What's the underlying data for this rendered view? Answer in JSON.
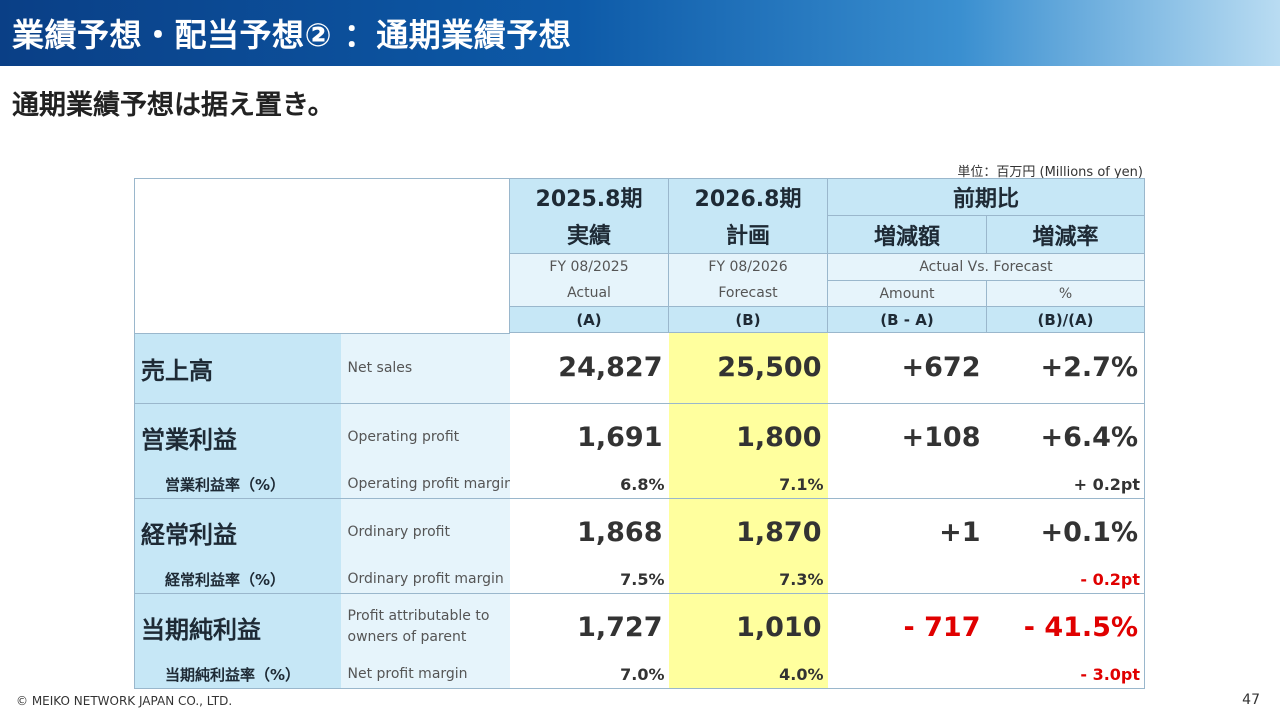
{
  "header": {
    "title": "業績予想・配当予想② ：通期業績予想"
  },
  "subtitle": "通期業績予想は据え置き。",
  "unit_note": "単位：百万円 (Millions of yen)",
  "columns": {
    "fy2025": {
      "jp_line1": "2025.8期",
      "jp_line2": "実績",
      "en_line1": "FY 08/2025",
      "en_line2": "Actual",
      "code": "(A)"
    },
    "fy2026": {
      "jp_line1": "2026.8期",
      "jp_line2": "計画",
      "en_line1": "FY 08/2026",
      "en_line2": "Forecast",
      "code": "(B)"
    },
    "compare": {
      "label": "前期比",
      "en_label": "Actual Vs. Forecast",
      "amount": {
        "jp": "増減額",
        "en": "Amount",
        "code": "(B - A)"
      },
      "rate": {
        "jp": "増減率",
        "en": "%",
        "code": "(B)/(A)"
      }
    }
  },
  "rows": {
    "net_sales": {
      "jp": "売上高",
      "en": "Net sales",
      "a": "24,827",
      "b": "25,500",
      "diff": "+672",
      "rate": "+2.7%"
    },
    "operating_profit": {
      "jp": "営業利益",
      "en": "Operating profit",
      "a": "1,691",
      "b": "1,800",
      "diff": "+108",
      "rate": "+6.4%"
    },
    "operating_margin": {
      "jp": "営業利益率（%）",
      "en": "Operating profit margin",
      "a": "6.8%",
      "b": "7.1%",
      "rate": "+ 0.2pt"
    },
    "ordinary_profit": {
      "jp": "経常利益",
      "en": "Ordinary profit",
      "a": "1,868",
      "b": "1,870",
      "diff": "+1",
      "rate": "+0.1%"
    },
    "ordinary_margin": {
      "jp": "経常利益率（%）",
      "en": "Ordinary profit margin",
      "a": "7.5%",
      "b": "7.3%",
      "rate": "- 0.2pt"
    },
    "net_profit": {
      "jp": "当期純利益",
      "en": "Profit attributable to owners of parent",
      "a": "1,727",
      "b": "1,010",
      "diff": "- 717",
      "rate": "- 41.5%"
    },
    "net_margin": {
      "jp": "当期純利益率（%）",
      "en": "Net profit margin",
      "a": "7.0%",
      "b": "4.0%",
      "rate": "- 3.0pt"
    }
  },
  "colors": {
    "header_blue": "#0a3f86",
    "label_bg": "#c6e7f6",
    "forecast_highlight": "#ffff9e",
    "negative": "#e00000"
  },
  "footer": {
    "copyright": "© MEIKO NETWORK JAPAN CO., LTD.",
    "page_number": "47"
  }
}
